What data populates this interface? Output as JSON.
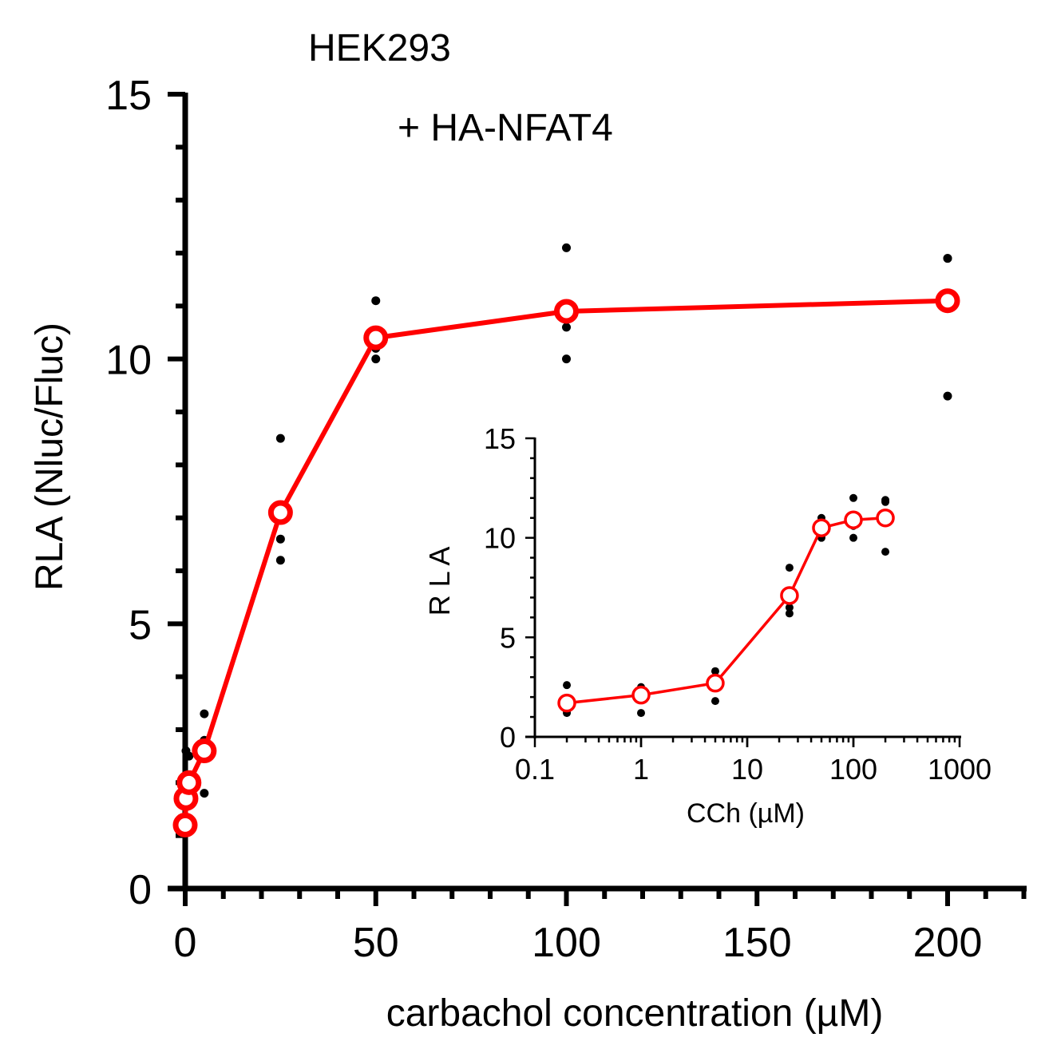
{
  "chart_data": [
    {
      "type": "line",
      "title": "HEK293",
      "subtitle": "+ HA-NFAT4",
      "xlabel": "carbachol concentration  (µM)",
      "ylabel": "RLA  (Nluc/Fluc)",
      "xlim": [
        0,
        222
      ],
      "ylim": [
        0,
        15
      ],
      "x_ticks": [
        0,
        50,
        100,
        150,
        200
      ],
      "x_tick_labels": [
        "0",
        "50",
        "100",
        "150",
        "200"
      ],
      "y_ticks": [
        0,
        5,
        10,
        15
      ],
      "y_tick_labels": [
        "0",
        "5",
        "10",
        "15"
      ],
      "x_minor_step": 10,
      "y_minor_step": 1,
      "grid": false,
      "legend": "none",
      "colors": {
        "mean": "#ff0000",
        "replicate": "#000000"
      },
      "series": [
        {
          "kind": "mean",
          "x": [
            0,
            0.2,
            1,
            5,
            25,
            50,
            100,
            200
          ],
          "y": [
            1.2,
            1.7,
            2.0,
            2.6,
            7.1,
            10.4,
            10.9,
            11.1
          ]
        },
        {
          "kind": "replicates",
          "points": [
            {
              "x": 0,
              "y": 1.1
            },
            {
              "x": 0,
              "y": 1.2
            },
            {
              "x": 0,
              "y": 1.3
            },
            {
              "x": 0.2,
              "y": 1.2
            },
            {
              "x": 0.2,
              "y": 1.6
            },
            {
              "x": 0.2,
              "y": 2.6
            },
            {
              "x": 1,
              "y": 1.3
            },
            {
              "x": 1,
              "y": 2.1
            },
            {
              "x": 1,
              "y": 2.5
            },
            {
              "x": 5,
              "y": 1.8
            },
            {
              "x": 5,
              "y": 2.8
            },
            {
              "x": 5,
              "y": 3.3
            },
            {
              "x": 25,
              "y": 6.2
            },
            {
              "x": 25,
              "y": 6.6
            },
            {
              "x": 25,
              "y": 8.5
            },
            {
              "x": 50,
              "y": 10.0
            },
            {
              "x": 50,
              "y": 10.2
            },
            {
              "x": 50,
              "y": 11.1
            },
            {
              "x": 100,
              "y": 10.0
            },
            {
              "x": 100,
              "y": 10.6
            },
            {
              "x": 100,
              "y": 12.1
            },
            {
              "x": 200,
              "y": 9.3
            },
            {
              "x": 200,
              "y": 11.9
            },
            {
              "x": 200,
              "y": 11.9
            }
          ]
        }
      ]
    },
    {
      "type": "line",
      "xscale": "log",
      "xlabel": "CCh (µM)",
      "ylabel": "R L A",
      "xlim": [
        0.1,
        1000
      ],
      "ylim": [
        0,
        15
      ],
      "x_ticks": [
        0.1,
        1,
        10,
        100,
        1000
      ],
      "x_tick_labels": [
        "0.1",
        "1",
        "10",
        "100",
        "1000"
      ],
      "y_ticks": [
        0,
        5,
        10,
        15
      ],
      "y_tick_labels": [
        "0",
        "5",
        "10",
        "15"
      ],
      "y_minor_step": 1,
      "grid": false,
      "legend": "none",
      "series": [
        {
          "kind": "mean",
          "x": [
            0.2,
            1,
            5,
            25,
            50,
            100,
            200
          ],
          "y": [
            1.7,
            2.1,
            2.7,
            7.1,
            10.5,
            10.9,
            11.0
          ]
        },
        {
          "kind": "replicates",
          "points": [
            {
              "x": 0.2,
              "y": 1.2
            },
            {
              "x": 0.2,
              "y": 1.3
            },
            {
              "x": 0.2,
              "y": 2.6
            },
            {
              "x": 1,
              "y": 1.2
            },
            {
              "x": 1,
              "y": 2.4
            },
            {
              "x": 1,
              "y": 2.5
            },
            {
              "x": 5,
              "y": 1.8
            },
            {
              "x": 5,
              "y": 3.0
            },
            {
              "x": 5,
              "y": 3.3
            },
            {
              "x": 25,
              "y": 6.2
            },
            {
              "x": 25,
              "y": 6.5
            },
            {
              "x": 25,
              "y": 8.5
            },
            {
              "x": 50,
              "y": 10.0
            },
            {
              "x": 50,
              "y": 10.1
            },
            {
              "x": 50,
              "y": 11.0
            },
            {
              "x": 100,
              "y": 10.0
            },
            {
              "x": 100,
              "y": 10.6
            },
            {
              "x": 100,
              "y": 12.0
            },
            {
              "x": 200,
              "y": 9.3
            },
            {
              "x": 200,
              "y": 11.8
            },
            {
              "x": 200,
              "y": 11.9
            }
          ]
        }
      ]
    }
  ]
}
